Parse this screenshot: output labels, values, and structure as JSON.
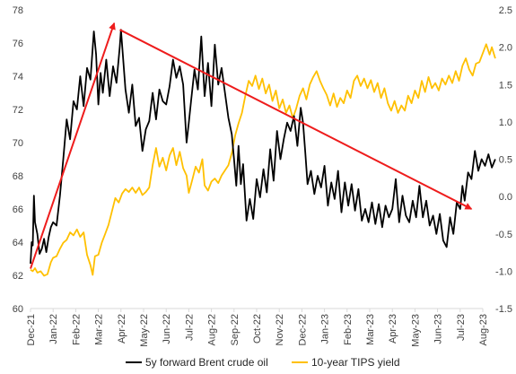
{
  "chart_data": {
    "type": "line",
    "colors": {
      "oil": "#000000",
      "tips": "#ffc000",
      "arrow": "#ee1c1c",
      "axis": "#d9d9d9"
    },
    "x_categories": [
      "Dec-21",
      "Jan-22",
      "Feb-22",
      "Mar-22",
      "Apr-22",
      "May-22",
      "Jun-22",
      "Jul-22",
      "Aug-22",
      "Sep-22",
      "Oct-22",
      "Nov-22",
      "Dec-22",
      "Jan-23",
      "Feb-23",
      "Mar-23",
      "Apr-23",
      "May-23",
      "Jun-23",
      "Jul-23",
      "Aug-23"
    ],
    "left_axis": {
      "ylim": [
        60,
        78
      ],
      "ticks": [
        "60",
        "62",
        "64",
        "66",
        "68",
        "70",
        "72",
        "74",
        "76",
        "78"
      ]
    },
    "right_axis": {
      "ylim": [
        -1.5,
        2.5
      ],
      "ticks": [
        "-1.5",
        "-1.0",
        "-0.5",
        "0.0",
        "0.5",
        "1.0",
        "1.5",
        "2.0",
        "2.5"
      ]
    },
    "legend": [
      "5y forward Brent crude oil",
      "10-year TIPS yield"
    ],
    "series": [
      {
        "name": "5y forward Brent crude oil",
        "axis": "left",
        "points": [
          [
            0.0,
            62.7
          ],
          [
            0.05,
            64.0
          ],
          [
            0.1,
            63.8
          ],
          [
            0.15,
            66.8
          ],
          [
            0.2,
            65.2
          ],
          [
            0.3,
            64.5
          ],
          [
            0.4,
            63.3
          ],
          [
            0.5,
            63.6
          ],
          [
            0.6,
            64.2
          ],
          [
            0.7,
            63.4
          ],
          [
            0.8,
            64.3
          ],
          [
            0.9,
            64.9
          ],
          [
            1.0,
            65.2
          ],
          [
            1.15,
            65.0
          ],
          [
            1.3,
            66.8
          ],
          [
            1.45,
            69.0
          ],
          [
            1.6,
            71.4
          ],
          [
            1.75,
            70.2
          ],
          [
            1.9,
            72.5
          ],
          [
            2.05,
            72.0
          ],
          [
            2.2,
            74.0
          ],
          [
            2.35,
            72.2
          ],
          [
            2.5,
            74.5
          ],
          [
            2.65,
            73.8
          ],
          [
            2.8,
            76.7
          ],
          [
            2.9,
            75.3
          ],
          [
            3.0,
            72.3
          ],
          [
            3.1,
            74.2
          ],
          [
            3.2,
            73.0
          ],
          [
            3.35,
            75.0
          ],
          [
            3.5,
            72.8
          ],
          [
            3.65,
            74.6
          ],
          [
            3.8,
            73.6
          ],
          [
            3.95,
            75.8
          ],
          [
            4.0,
            76.8
          ],
          [
            4.1,
            75.0
          ],
          [
            4.2,
            73.2
          ],
          [
            4.35,
            71.8
          ],
          [
            4.5,
            73.5
          ],
          [
            4.65,
            71.0
          ],
          [
            4.8,
            71.5
          ],
          [
            4.95,
            69.5
          ],
          [
            5.1,
            70.8
          ],
          [
            5.25,
            71.3
          ],
          [
            5.4,
            73.0
          ],
          [
            5.55,
            71.4
          ],
          [
            5.7,
            73.2
          ],
          [
            5.85,
            72.5
          ],
          [
            6.0,
            72.3
          ],
          [
            6.15,
            73.4
          ],
          [
            6.3,
            75.0
          ],
          [
            6.45,
            73.9
          ],
          [
            6.6,
            74.6
          ],
          [
            6.75,
            73.5
          ],
          [
            6.9,
            70.0
          ],
          [
            7.0,
            71.2
          ],
          [
            7.1,
            72.5
          ],
          [
            7.25,
            74.4
          ],
          [
            7.4,
            73.2
          ],
          [
            7.55,
            76.4
          ],
          [
            7.7,
            72.8
          ],
          [
            7.85,
            74.8
          ],
          [
            8.0,
            72.2
          ],
          [
            8.15,
            75.9
          ],
          [
            8.3,
            73.5
          ],
          [
            8.45,
            74.5
          ],
          [
            8.6,
            73.0
          ],
          [
            8.75,
            71.5
          ],
          [
            8.9,
            70.5
          ],
          [
            9.0,
            69.0
          ],
          [
            9.1,
            67.4
          ],
          [
            9.2,
            69.8
          ],
          [
            9.3,
            67.5
          ],
          [
            9.4,
            68.7
          ],
          [
            9.55,
            65.3
          ],
          [
            9.7,
            66.6
          ],
          [
            9.85,
            65.4
          ],
          [
            10.0,
            67.8
          ],
          [
            10.15,
            66.7
          ],
          [
            10.3,
            68.4
          ],
          [
            10.45,
            67.0
          ],
          [
            10.6,
            69.6
          ],
          [
            10.75,
            67.7
          ],
          [
            10.9,
            70.7
          ],
          [
            11.05,
            69.0
          ],
          [
            11.2,
            70.2
          ],
          [
            11.35,
            71.2
          ],
          [
            11.5,
            70.7
          ],
          [
            11.65,
            71.6
          ],
          [
            11.8,
            69.8
          ],
          [
            11.95,
            72.1
          ],
          [
            12.05,
            71.2
          ],
          [
            12.15,
            69.4
          ],
          [
            12.25,
            67.5
          ],
          [
            12.4,
            68.3
          ],
          [
            12.55,
            66.9
          ],
          [
            12.7,
            68.0
          ],
          [
            12.85,
            67.3
          ],
          [
            13.0,
            68.6
          ],
          [
            13.15,
            66.2
          ],
          [
            13.3,
            67.6
          ],
          [
            13.45,
            66.6
          ],
          [
            13.6,
            68.3
          ],
          [
            13.75,
            65.8
          ],
          [
            13.9,
            67.6
          ],
          [
            14.05,
            66.2
          ],
          [
            14.2,
            67.5
          ],
          [
            14.35,
            65.9
          ],
          [
            14.5,
            67.2
          ],
          [
            14.65,
            65.3
          ],
          [
            14.8,
            66.0
          ],
          [
            14.95,
            65.2
          ],
          [
            15.1,
            66.4
          ],
          [
            15.25,
            65.1
          ],
          [
            15.4,
            66.3
          ],
          [
            15.55,
            64.9
          ],
          [
            15.7,
            66.2
          ],
          [
            15.85,
            65.5
          ],
          [
            16.0,
            66.0
          ],
          [
            16.15,
            67.8
          ],
          [
            16.3,
            65.2
          ],
          [
            16.45,
            66.8
          ],
          [
            16.6,
            65.6
          ],
          [
            16.75,
            65.2
          ],
          [
            16.9,
            66.5
          ],
          [
            17.05,
            65.5
          ],
          [
            17.2,
            67.4
          ],
          [
            17.35,
            65.5
          ],
          [
            17.5,
            66.5
          ],
          [
            17.65,
            65.0
          ],
          [
            17.8,
            65.6
          ],
          [
            17.95,
            64.5
          ],
          [
            18.1,
            65.7
          ],
          [
            18.25,
            64.1
          ],
          [
            18.4,
            63.7
          ],
          [
            18.55,
            65.5
          ],
          [
            18.7,
            64.5
          ],
          [
            18.85,
            66.4
          ],
          [
            19.0,
            66.0
          ],
          [
            19.1,
            67.4
          ],
          [
            19.2,
            66.5
          ],
          [
            19.35,
            68.2
          ],
          [
            19.5,
            67.8
          ],
          [
            19.65,
            69.5
          ],
          [
            19.8,
            68.3
          ],
          [
            19.95,
            69.0
          ],
          [
            20.1,
            68.6
          ],
          [
            20.25,
            69.3
          ],
          [
            20.4,
            68.5
          ],
          [
            20.55,
            69.0
          ]
        ]
      },
      {
        "name": "10-year TIPS yield",
        "axis": "right",
        "points": [
          [
            0.0,
            -0.98
          ],
          [
            0.1,
            -1.0
          ],
          [
            0.2,
            -0.96
          ],
          [
            0.3,
            -1.02
          ],
          [
            0.45,
            -1.0
          ],
          [
            0.6,
            -1.06
          ],
          [
            0.75,
            -1.04
          ],
          [
            0.9,
            -0.88
          ],
          [
            1.0,
            -0.82
          ],
          [
            1.15,
            -0.8
          ],
          [
            1.3,
            -0.7
          ],
          [
            1.45,
            -0.62
          ],
          [
            1.6,
            -0.58
          ],
          [
            1.75,
            -0.48
          ],
          [
            1.9,
            -0.52
          ],
          [
            2.05,
            -0.44
          ],
          [
            2.2,
            -0.54
          ],
          [
            2.35,
            -0.48
          ],
          [
            2.5,
            -0.78
          ],
          [
            2.65,
            -0.92
          ],
          [
            2.75,
            -1.05
          ],
          [
            2.85,
            -0.8
          ],
          [
            3.0,
            -0.78
          ],
          [
            3.15,
            -0.62
          ],
          [
            3.3,
            -0.5
          ],
          [
            3.45,
            -0.38
          ],
          [
            3.6,
            -0.2
          ],
          [
            3.75,
            -0.02
          ],
          [
            3.9,
            -0.08
          ],
          [
            4.05,
            0.04
          ],
          [
            4.2,
            0.1
          ],
          [
            4.35,
            0.06
          ],
          [
            4.5,
            0.12
          ],
          [
            4.65,
            0.05
          ],
          [
            4.8,
            0.12
          ],
          [
            4.95,
            0.02
          ],
          [
            5.1,
            0.06
          ],
          [
            5.25,
            0.12
          ],
          [
            5.4,
            0.42
          ],
          [
            5.55,
            0.65
          ],
          [
            5.7,
            0.4
          ],
          [
            5.85,
            0.52
          ],
          [
            6.0,
            0.35
          ],
          [
            6.15,
            0.55
          ],
          [
            6.3,
            0.65
          ],
          [
            6.45,
            0.42
          ],
          [
            6.6,
            0.6
          ],
          [
            6.75,
            0.38
          ],
          [
            6.9,
            0.28
          ],
          [
            7.0,
            0.05
          ],
          [
            7.15,
            0.22
          ],
          [
            7.3,
            0.4
          ],
          [
            7.45,
            0.32
          ],
          [
            7.6,
            0.5
          ],
          [
            7.7,
            0.15
          ],
          [
            7.85,
            0.08
          ],
          [
            8.0,
            0.2
          ],
          [
            8.15,
            0.24
          ],
          [
            8.3,
            0.18
          ],
          [
            8.45,
            0.28
          ],
          [
            8.6,
            0.35
          ],
          [
            8.75,
            0.42
          ],
          [
            8.9,
            0.58
          ],
          [
            9.05,
            0.82
          ],
          [
            9.2,
            0.98
          ],
          [
            9.35,
            1.12
          ],
          [
            9.5,
            1.35
          ],
          [
            9.65,
            1.55
          ],
          [
            9.8,
            1.48
          ],
          [
            9.95,
            1.62
          ],
          [
            10.1,
            1.44
          ],
          [
            10.25,
            1.58
          ],
          [
            10.4,
            1.38
          ],
          [
            10.55,
            1.5
          ],
          [
            10.7,
            1.28
          ],
          [
            10.85,
            1.42
          ],
          [
            11.0,
            1.18
          ],
          [
            11.15,
            1.3
          ],
          [
            11.3,
            1.12
          ],
          [
            11.45,
            1.22
          ],
          [
            11.6,
            1.05
          ],
          [
            11.75,
            1.18
          ],
          [
            11.9,
            1.35
          ],
          [
            12.05,
            1.45
          ],
          [
            12.2,
            1.3
          ],
          [
            12.35,
            1.5
          ],
          [
            12.5,
            1.6
          ],
          [
            12.65,
            1.68
          ],
          [
            12.8,
            1.55
          ],
          [
            12.95,
            1.45
          ],
          [
            13.1,
            1.36
          ],
          [
            13.25,
            1.22
          ],
          [
            13.4,
            1.38
          ],
          [
            13.55,
            1.2
          ],
          [
            13.7,
            1.32
          ],
          [
            13.85,
            1.25
          ],
          [
            14.0,
            1.42
          ],
          [
            14.15,
            1.32
          ],
          [
            14.3,
            1.55
          ],
          [
            14.45,
            1.62
          ],
          [
            14.6,
            1.48
          ],
          [
            14.75,
            1.58
          ],
          [
            14.9,
            1.45
          ],
          [
            15.05,
            1.56
          ],
          [
            15.2,
            1.4
          ],
          [
            15.35,
            1.52
          ],
          [
            15.5,
            1.32
          ],
          [
            15.65,
            1.45
          ],
          [
            15.8,
            1.25
          ],
          [
            15.95,
            1.15
          ],
          [
            16.1,
            1.28
          ],
          [
            16.25,
            1.12
          ],
          [
            16.4,
            1.22
          ],
          [
            16.55,
            1.15
          ],
          [
            16.7,
            1.35
          ],
          [
            16.85,
            1.25
          ],
          [
            17.0,
            1.42
          ],
          [
            17.15,
            1.32
          ],
          [
            17.3,
            1.55
          ],
          [
            17.45,
            1.4
          ],
          [
            17.6,
            1.6
          ],
          [
            17.75,
            1.45
          ],
          [
            17.9,
            1.52
          ],
          [
            18.05,
            1.42
          ],
          [
            18.2,
            1.58
          ],
          [
            18.35,
            1.5
          ],
          [
            18.5,
            1.62
          ],
          [
            18.65,
            1.52
          ],
          [
            18.8,
            1.68
          ],
          [
            18.95,
            1.55
          ],
          [
            19.1,
            1.75
          ],
          [
            19.25,
            1.85
          ],
          [
            19.4,
            1.7
          ],
          [
            19.55,
            1.62
          ],
          [
            19.7,
            1.78
          ],
          [
            19.85,
            1.8
          ],
          [
            20.0,
            1.92
          ],
          [
            20.15,
            2.04
          ],
          [
            20.3,
            1.9
          ],
          [
            20.4,
            2.0
          ],
          [
            20.55,
            1.85
          ]
        ]
      }
    ],
    "annotations": [
      {
        "type": "arrow",
        "axis": "left",
        "from": [
          0.0,
          62.4
        ],
        "to": [
          3.7,
          77.2
        ]
      },
      {
        "type": "arrow",
        "axis": "left",
        "from": [
          3.95,
          76.8
        ],
        "to": [
          19.5,
          66.0
        ]
      }
    ]
  }
}
